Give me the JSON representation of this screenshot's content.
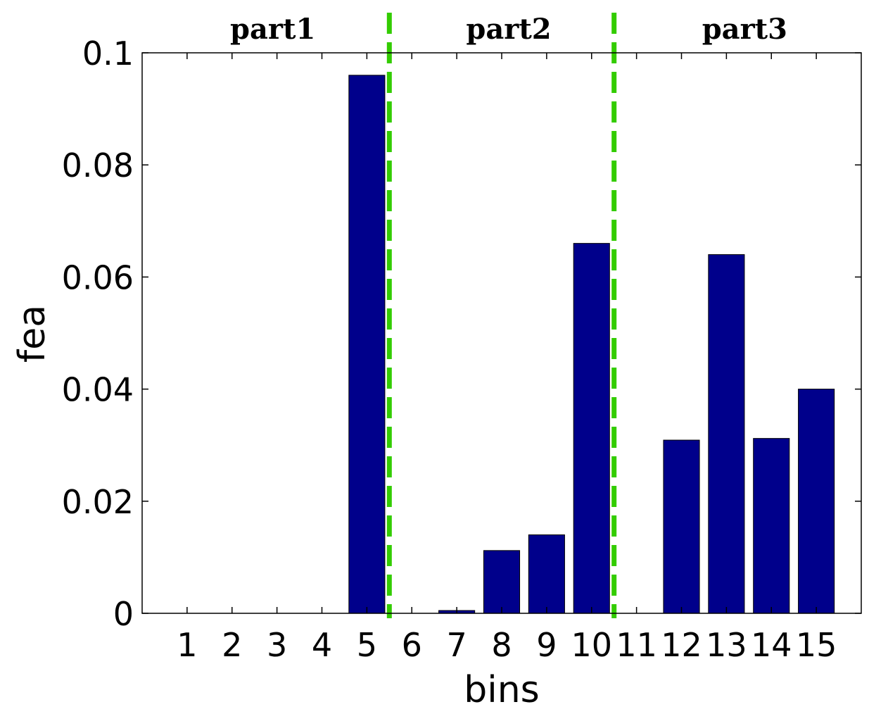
{
  "chart_data": {
    "type": "bar",
    "categories": [
      "1",
      "2",
      "3",
      "4",
      "5",
      "6",
      "7",
      "8",
      "9",
      "10",
      "11",
      "12",
      "13",
      "14",
      "15"
    ],
    "values": [
      0,
      0,
      0,
      0,
      0.096,
      0,
      0.0005,
      0.0112,
      0.014,
      0.066,
      0,
      0.0309,
      0.064,
      0.0312,
      0.04
    ],
    "xlabel": "bins",
    "ylabel": "fea",
    "ylim": [
      0,
      0.1
    ],
    "yticks": [
      0,
      0.02,
      0.04,
      0.06,
      0.08,
      0.1
    ],
    "ytick_labels": [
      "0",
      "0.02",
      "0.04",
      "0.06",
      "0.08",
      "0.1"
    ],
    "xlim": [
      0,
      16
    ],
    "bar_color": "#00008b",
    "separators": [
      {
        "x": 5.5,
        "color": "#33cc00",
        "style": "dashed"
      },
      {
        "x": 10.5,
        "color": "#33cc00",
        "style": "dashed"
      }
    ],
    "part_labels": [
      {
        "label": "part1",
        "x": 2.75
      },
      {
        "label": "part2",
        "x": 8.0
      },
      {
        "label": "part3",
        "x": 13.25
      }
    ],
    "grid": false,
    "legend": "none"
  }
}
